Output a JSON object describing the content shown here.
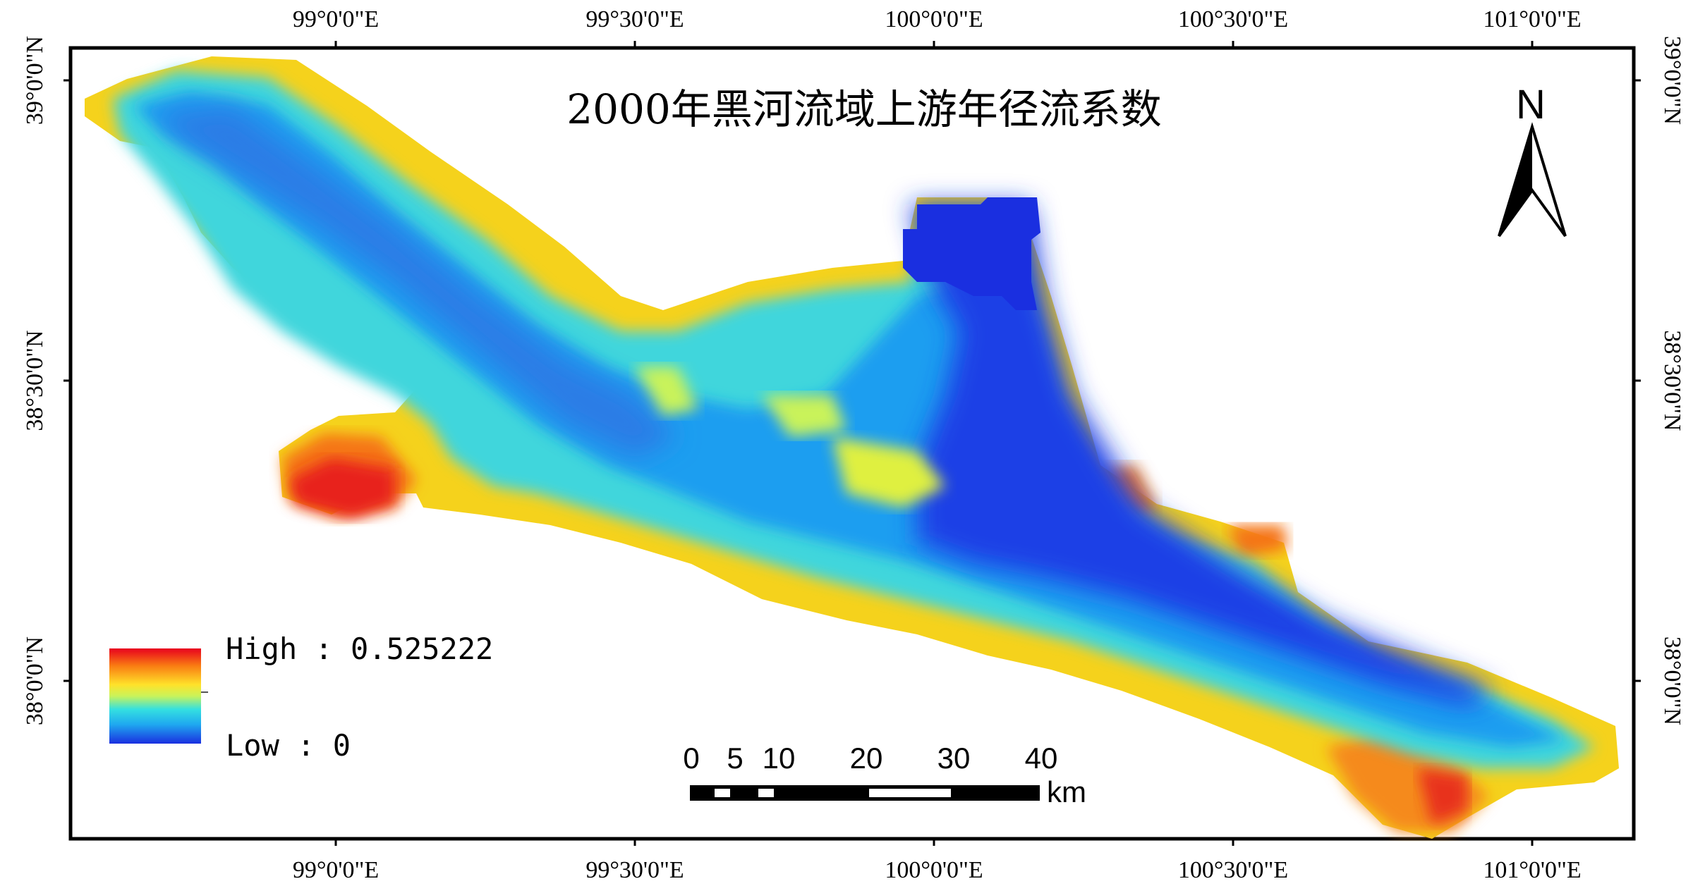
{
  "map": {
    "title": "2000年黑河流域上游年径流系数",
    "north_label": "N",
    "legend": {
      "high_label": "High : 0.525222",
      "low_label": "Low : 0",
      "high_value": 0.525222,
      "low_value": 0,
      "color_ramp": [
        "#e8001e",
        "#f97b12",
        "#ffe22a",
        "#c9f35a",
        "#34e0e0",
        "#1fa8f0",
        "#1a2fe0"
      ]
    },
    "scale_bar": {
      "unit": "km",
      "tick_labels": [
        "0",
        "5",
        "10",
        "20",
        "30",
        "40"
      ]
    },
    "axes": {
      "top_longitudes": [
        "99°0'0\"E",
        "99°30'0\"E",
        "100°0'0\"E",
        "100°30'0\"E",
        "101°0'0\"E"
      ],
      "bottom_longitudes": [
        "99°0'0\"E",
        "99°30'0\"E",
        "100°0'0\"E",
        "100°30'0\"E",
        "101°0'0\"E"
      ],
      "left_latitudes": [
        "39°0'0\"N",
        "38°30'0\"N",
        "38°0'0\"N"
      ],
      "right_latitudes": [
        "39°0'0\"N",
        "38°30'0\"N",
        "38°0'0\"N"
      ]
    },
    "colors": {
      "frame": "#000000",
      "background": "#ffffff",
      "high": "#e8001e",
      "low": "#1a2fe0"
    }
  }
}
